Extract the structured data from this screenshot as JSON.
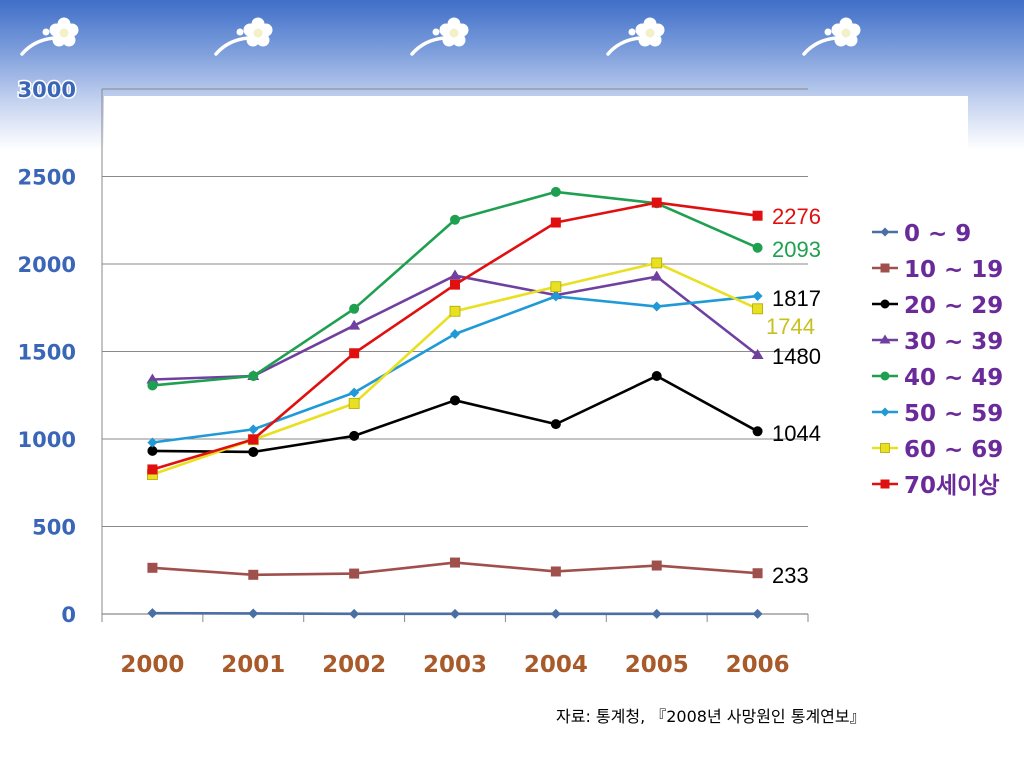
{
  "decoration": {
    "flower_icon": "flower-swoosh-icon",
    "flower_count": 5,
    "colors": {
      "banner_top": "#3f6fc8",
      "banner_bottom": "#ffffff"
    }
  },
  "source_note": "자료: 통계청, 『2008년 사망원인 통계연보』",
  "chart_data": {
    "type": "line",
    "title": "",
    "xlabel": "",
    "ylabel": "",
    "categories": [
      "2000",
      "2001",
      "2002",
      "2003",
      "2004",
      "2005",
      "2006"
    ],
    "ylim": [
      0,
      3000
    ],
    "yticks": [
      "0",
      "500",
      "1000",
      "1500",
      "2000",
      "2500",
      "3000"
    ],
    "grid": true,
    "legend_position": "right",
    "series": [
      {
        "name": "0 ~ 9",
        "color": "#4a6fa5",
        "marker": "diamond",
        "values": [
          5,
          3,
          1,
          1,
          1,
          1,
          1
        ]
      },
      {
        "name": "10 ~ 19",
        "color": "#a0504c",
        "marker": "square",
        "values": [
          264,
          224,
          231,
          294,
          243,
          277,
          233
        ],
        "end_label": "233",
        "end_label_color": "#000000"
      },
      {
        "name": "20 ~ 29",
        "color": "#000000",
        "marker": "circle",
        "values": [
          932,
          926,
          1018,
          1221,
          1085,
          1360,
          1044
        ],
        "end_label": "1044",
        "end_label_color": "#000000"
      },
      {
        "name": "30 ~ 39",
        "color": "#7040a0",
        "marker": "triangle",
        "values": [
          1340,
          1360,
          1648,
          1934,
          1822,
          1928,
          1480
        ],
        "end_label": "1480",
        "end_label_color": "#000000"
      },
      {
        "name": "40 ~ 49",
        "color": "#1fa050",
        "marker": "circle",
        "values": [
          1306,
          1360,
          1744,
          2253,
          2412,
          2347,
          2093
        ],
        "end_label": "2093",
        "end_label_color": "#1fa050"
      },
      {
        "name": "50 ~ 59",
        "color": "#1f9ad6",
        "marker": "diamond",
        "values": [
          980,
          1055,
          1265,
          1600,
          1815,
          1757,
          1817
        ],
        "end_label": "1817",
        "end_label_color": "#000000"
      },
      {
        "name": "60 ~ 69",
        "color": "#e8e020",
        "marker": "square",
        "values": [
          797,
          996,
          1203,
          1730,
          1870,
          2006,
          1744
        ],
        "end_label": "1744",
        "end_label_color": "#c8c020"
      },
      {
        "name": "70세이상",
        "color": "#e01010",
        "marker": "square",
        "values": [
          826,
          998,
          1490,
          1882,
          2237,
          2351,
          2276
        ],
        "end_label": "2276",
        "end_label_color": "#e01010"
      }
    ]
  }
}
